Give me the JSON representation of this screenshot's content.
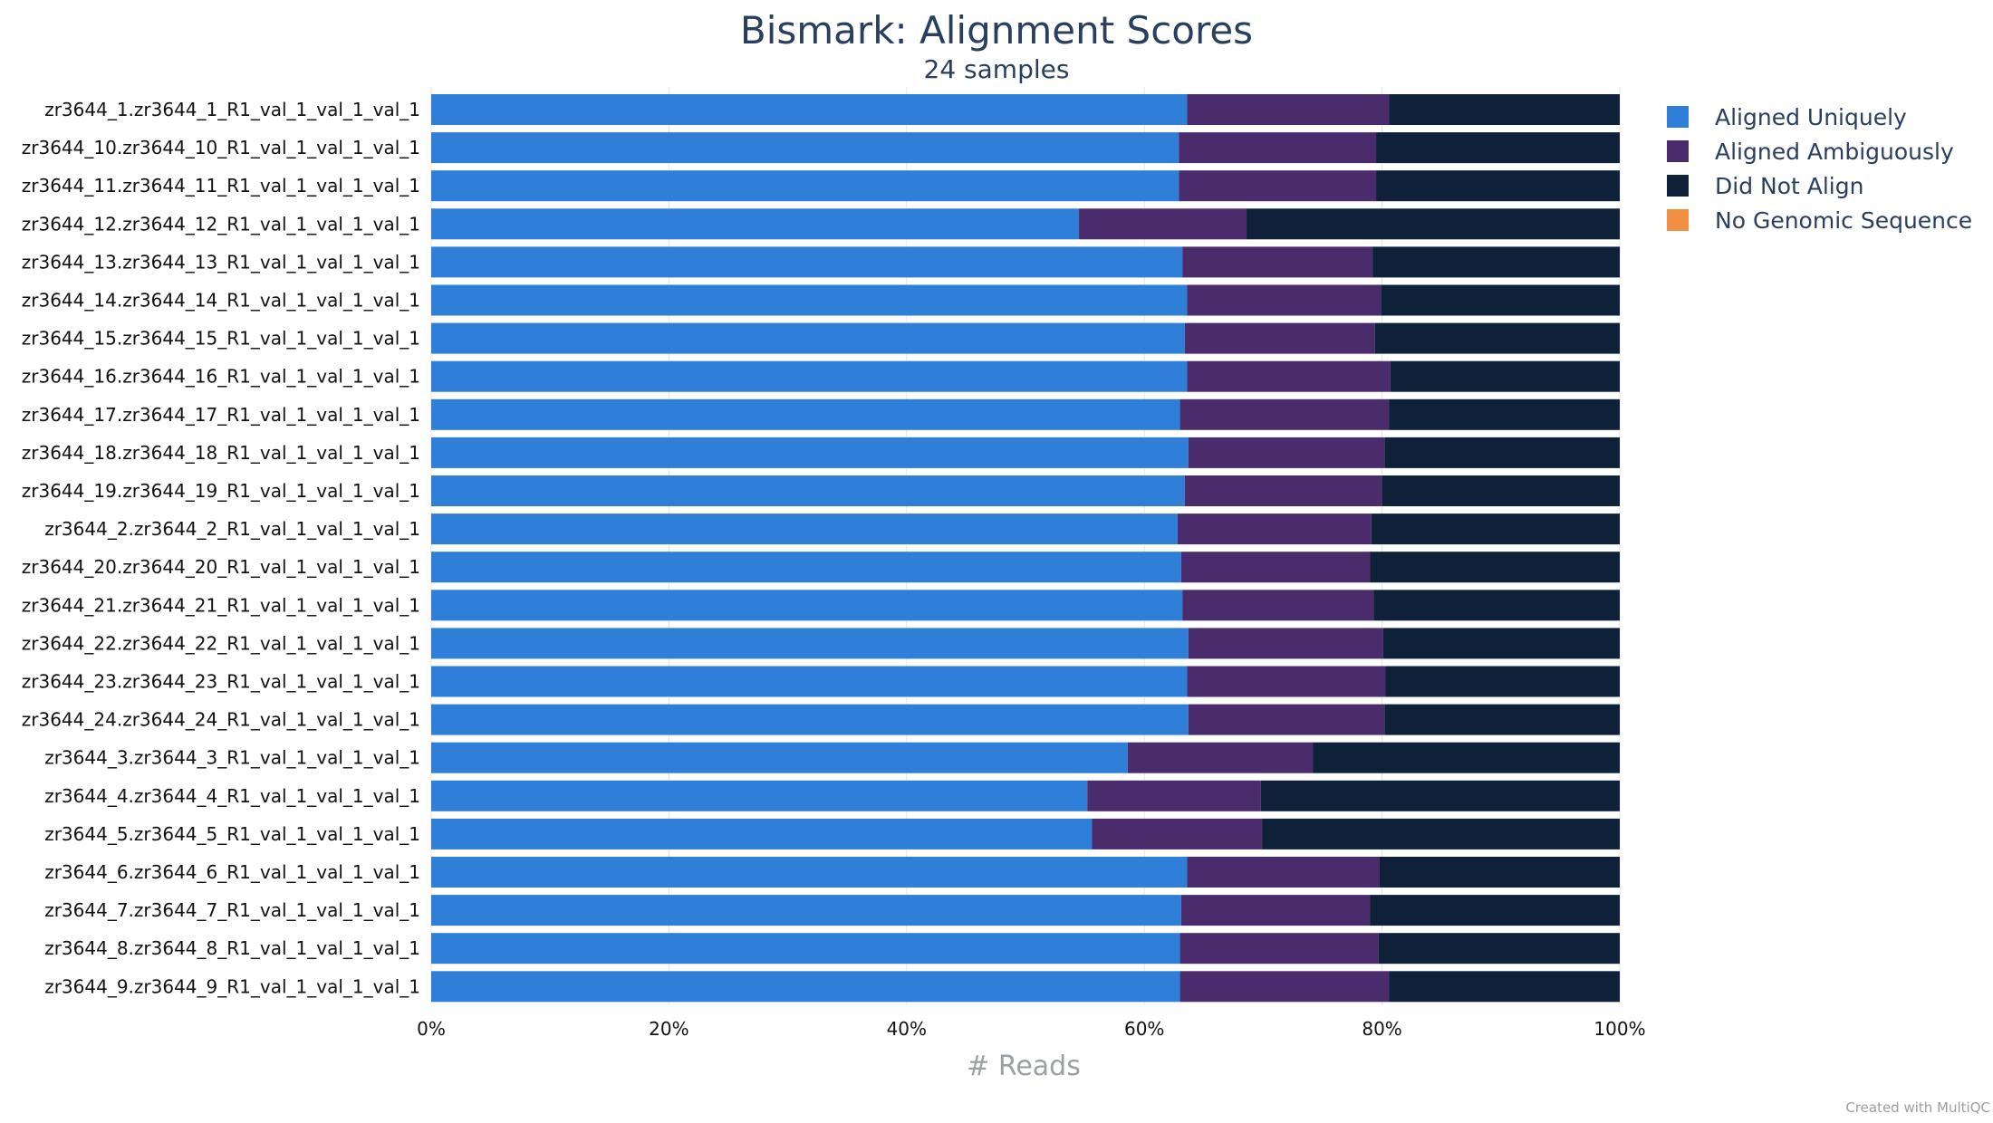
{
  "chart_data": {
    "type": "bar",
    "orientation": "horizontal",
    "stacked": true,
    "normalized_percent": true,
    "title": "Bismark: Alignment Scores",
    "subtitle": "24 samples",
    "xlabel": "# Reads",
    "xlim": [
      0,
      100
    ],
    "xticks": [
      "0%",
      "20%",
      "40%",
      "60%",
      "80%",
      "100%"
    ],
    "grid": "vertical",
    "legend_position": "top-right",
    "categories": [
      "zr3644_1.zr3644_1_R1_val_1_val_1_val_1",
      "zr3644_10.zr3644_10_R1_val_1_val_1_val_1",
      "zr3644_11.zr3644_11_R1_val_1_val_1_val_1",
      "zr3644_12.zr3644_12_R1_val_1_val_1_val_1",
      "zr3644_13.zr3644_13_R1_val_1_val_1_val_1",
      "zr3644_14.zr3644_14_R1_val_1_val_1_val_1",
      "zr3644_15.zr3644_15_R1_val_1_val_1_val_1",
      "zr3644_16.zr3644_16_R1_val_1_val_1_val_1",
      "zr3644_17.zr3644_17_R1_val_1_val_1_val_1",
      "zr3644_18.zr3644_18_R1_val_1_val_1_val_1",
      "zr3644_19.zr3644_19_R1_val_1_val_1_val_1",
      "zr3644_2.zr3644_2_R1_val_1_val_1_val_1",
      "zr3644_20.zr3644_20_R1_val_1_val_1_val_1",
      "zr3644_21.zr3644_21_R1_val_1_val_1_val_1",
      "zr3644_22.zr3644_22_R1_val_1_val_1_val_1",
      "zr3644_23.zr3644_23_R1_val_1_val_1_val_1",
      "zr3644_24.zr3644_24_R1_val_1_val_1_val_1",
      "zr3644_3.zr3644_3_R1_val_1_val_1_val_1",
      "zr3644_4.zr3644_4_R1_val_1_val_1_val_1",
      "zr3644_5.zr3644_5_R1_val_1_val_1_val_1",
      "zr3644_6.zr3644_6_R1_val_1_val_1_val_1",
      "zr3644_7.zr3644_7_R1_val_1_val_1_val_1",
      "zr3644_8.zr3644_8_R1_val_1_val_1_val_1",
      "zr3644_9.zr3644_9_R1_val_1_val_1_val_1"
    ],
    "series": [
      {
        "name": "Aligned Uniquely",
        "color": "#2f7ed8",
        "values": [
          63.6,
          62.9,
          62.9,
          54.5,
          63.2,
          63.6,
          63.4,
          63.6,
          63.0,
          63.7,
          63.4,
          62.8,
          63.1,
          63.2,
          63.7,
          63.6,
          63.7,
          58.6,
          55.2,
          55.6,
          63.6,
          63.1,
          63.0,
          63.0
        ]
      },
      {
        "name": "Aligned Ambiguously",
        "color": "#4a2b6b",
        "values": [
          17.0,
          16.6,
          16.6,
          14.1,
          16.0,
          16.3,
          16.0,
          17.1,
          17.6,
          16.5,
          16.6,
          16.3,
          15.9,
          16.1,
          16.4,
          16.7,
          16.5,
          15.6,
          14.6,
          14.3,
          16.2,
          15.9,
          16.7,
          17.6
        ]
      },
      {
        "name": "Did Not Align",
        "color": "#0f2139",
        "values": [
          19.4,
          20.5,
          20.5,
          31.4,
          20.8,
          20.1,
          20.6,
          19.3,
          19.4,
          19.8,
          20.0,
          20.9,
          21.0,
          20.7,
          19.9,
          19.7,
          19.8,
          25.8,
          30.2,
          30.1,
          20.2,
          21.0,
          20.3,
          19.4
        ]
      },
      {
        "name": "No Genomic Sequence",
        "color": "#f28f43",
        "values": [
          0,
          0,
          0,
          0,
          0,
          0,
          0,
          0,
          0,
          0,
          0,
          0,
          0,
          0,
          0,
          0,
          0,
          0,
          0,
          0,
          0,
          0,
          0,
          0
        ]
      }
    ],
    "credit": "Created with MultiQC"
  }
}
